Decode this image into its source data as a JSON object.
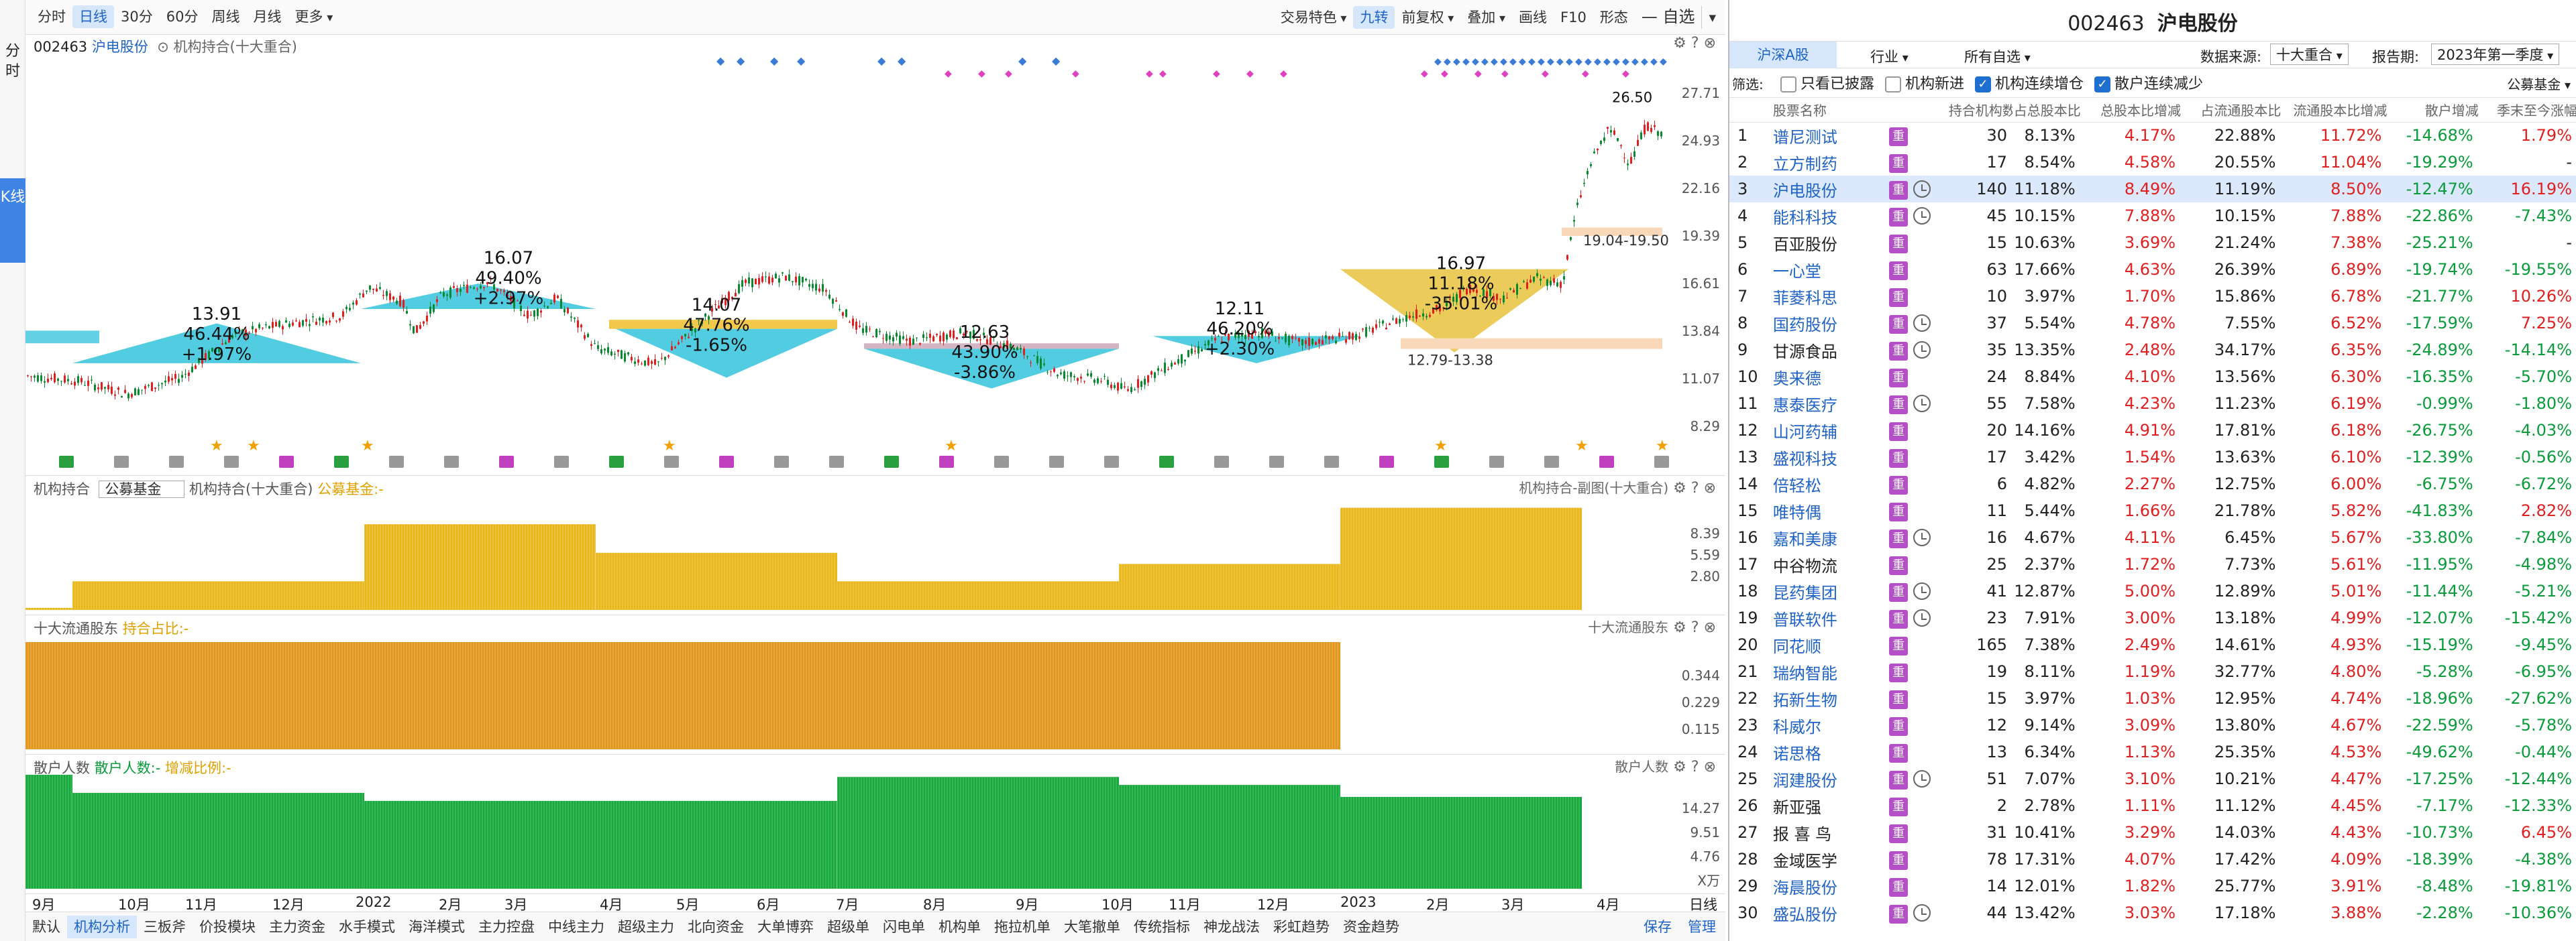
{
  "left_tabs": [
    {
      "label": "分时"
    },
    {
      "label": "K线"
    }
  ],
  "toolbar": {
    "periods": [
      "分时",
      "日线",
      "30分",
      "60分",
      "周线",
      "月线",
      "更多"
    ],
    "active": "日线",
    "right": [
      "交易特色",
      "九转",
      "前复权",
      "叠加",
      "画线",
      "F10",
      "形态"
    ],
    "zixuan": "自选"
  },
  "kline": {
    "code": "002463",
    "name": "沪电股份",
    "indicator": "机构持合(十大重合)",
    "yaxis": [
      "27.71",
      "24.93",
      "22.16",
      "19.39",
      "16.61",
      "13.84",
      "11.07",
      "8.29"
    ],
    "annotations": [
      {
        "price": "13.91",
        "pct": "46.44%",
        "chg": "+1.97%"
      },
      {
        "price": "16.07",
        "pct": "49.40%",
        "chg": "+2.97%"
      },
      {
        "price": "14.07",
        "pct": "47.76%",
        "chg": "-1.65%"
      },
      {
        "price": "12.63",
        "pct": "43.90%",
        "chg": "-3.86%"
      },
      {
        "price": "12.11",
        "pct": "46.20%",
        "chg": "+2.30%"
      },
      {
        "price": "16.97",
        "pct": "11.18%",
        "chg": "-35.01%"
      }
    ],
    "range_labels": [
      "19.04-19.50",
      "12.79-13.38"
    ],
    "peak": "26.50"
  },
  "panel1": {
    "title": "机构持合",
    "select": "公募基金",
    "sub": "机构持合(十大重合)",
    "legend": "公募基金:-",
    "right_title": "机构持合-副图(十大重合)",
    "yaxis": [
      "8.39",
      "5.59",
      "2.80"
    ]
  },
  "panel2": {
    "title": "十大流通股东",
    "legend": "持合占比:-",
    "right_title": "十大流通股东",
    "yaxis": [
      "0.344",
      "0.229",
      "0.115"
    ]
  },
  "panel3": {
    "title": "散户人数",
    "legend1": "散户人数:-",
    "legend2": "增减比例:-",
    "right_title": "散户人数",
    "yaxis": [
      "14.27",
      "9.51",
      "4.76"
    ],
    "unit": "X万"
  },
  "xaxis": [
    "9月",
    "10月",
    "11月",
    "12月",
    "2022",
    "2月",
    "3月",
    "4月",
    "5月",
    "6月",
    "7月",
    "8月",
    "9月",
    "10月",
    "11月",
    "12月",
    "2023",
    "2月",
    "3月",
    "4月"
  ],
  "xaxis_right": "日线",
  "bottom_tabs": [
    "默认",
    "机构分析",
    "三板斧",
    "价投模块",
    "主力资金",
    "水手模式",
    "海洋模式",
    "主力控盘",
    "中线主力",
    "超级主力",
    "北向资金",
    "大单博弈",
    "超级单",
    "闪电单",
    "机构单",
    "拖拉机单",
    "大笔撤单",
    "传统指标",
    "神龙战法",
    "彩虹趋势",
    "资金趋势"
  ],
  "bottom_active": "机构分析",
  "bottom_right": [
    "保存",
    "管理"
  ],
  "right": {
    "code": "002463",
    "name": "沪电股份",
    "tabs": [
      "沪深A股",
      "行业",
      "所有自选"
    ],
    "source_label": "数据来源:",
    "source": "十大重合",
    "period_label": "报告期:",
    "period": "2023年第一季度",
    "filter_label": "筛选:",
    "filters": [
      {
        "label": "只看已披露",
        "checked": false
      },
      {
        "label": "机构新进",
        "checked": false
      },
      {
        "label": "机构连续增仓",
        "checked": true
      },
      {
        "label": "散户连续减少",
        "checked": true
      }
    ],
    "fund": "公募基金",
    "columns": [
      "股票名称",
      "持合机构数",
      "占总股本比",
      "总股本比增减",
      "占流通股本比",
      "流通股本比增减",
      "散户增减",
      "季末至今涨幅"
    ],
    "rows": [
      [
        "1",
        "谱尼测试",
        false,
        "30",
        "8.13%",
        "4.17%",
        "22.88%",
        "11.72%",
        "-14.68%",
        "1.79%"
      ],
      [
        "2",
        "立方制药",
        false,
        "17",
        "8.54%",
        "4.58%",
        "20.55%",
        "11.04%",
        "-19.29%",
        "-"
      ],
      [
        "3",
        "沪电股份",
        true,
        "140",
        "11.18%",
        "8.49%",
        "11.19%",
        "8.50%",
        "-12.47%",
        "16.19%"
      ],
      [
        "4",
        "能科科技",
        true,
        "45",
        "10.15%",
        "7.88%",
        "10.15%",
        "7.88%",
        "-22.86%",
        "-7.43%"
      ],
      [
        "5",
        "百亚股份",
        false,
        "15",
        "10.63%",
        "3.69%",
        "21.24%",
        "7.38%",
        "-25.21%",
        "-"
      ],
      [
        "6",
        "一心堂",
        false,
        "63",
        "17.66%",
        "4.63%",
        "26.39%",
        "6.89%",
        "-19.74%",
        "-19.55%"
      ],
      [
        "7",
        "菲菱科思",
        false,
        "10",
        "3.97%",
        "1.70%",
        "15.86%",
        "6.78%",
        "-21.77%",
        "10.26%"
      ],
      [
        "8",
        "国药股份",
        true,
        "37",
        "5.54%",
        "4.78%",
        "7.55%",
        "6.52%",
        "-17.59%",
        "7.25%"
      ],
      [
        "9",
        "甘源食品",
        true,
        "35",
        "13.35%",
        "2.48%",
        "34.17%",
        "6.35%",
        "-24.89%",
        "-14.14%"
      ],
      [
        "10",
        "奥来德",
        false,
        "24",
        "8.84%",
        "4.10%",
        "13.56%",
        "6.30%",
        "-16.35%",
        "-5.70%"
      ],
      [
        "11",
        "惠泰医疗",
        true,
        "55",
        "7.58%",
        "4.23%",
        "11.23%",
        "6.19%",
        "-0.99%",
        "-1.80%"
      ],
      [
        "12",
        "山河药辅",
        false,
        "20",
        "14.16%",
        "4.91%",
        "17.81%",
        "6.18%",
        "-26.75%",
        "-4.03%"
      ],
      [
        "13",
        "盛视科技",
        false,
        "17",
        "3.42%",
        "1.54%",
        "13.63%",
        "6.10%",
        "-12.39%",
        "-0.56%"
      ],
      [
        "14",
        "倍轻松",
        false,
        "6",
        "4.82%",
        "2.27%",
        "12.75%",
        "6.00%",
        "-6.75%",
        "-6.72%"
      ],
      [
        "15",
        "唯特偶",
        false,
        "11",
        "5.44%",
        "1.66%",
        "21.78%",
        "5.82%",
        "-41.83%",
        "2.82%"
      ],
      [
        "16",
        "嘉和美康",
        true,
        "16",
        "4.67%",
        "4.11%",
        "6.45%",
        "5.67%",
        "-33.80%",
        "-7.84%"
      ],
      [
        "17",
        "中谷物流",
        false,
        "25",
        "2.37%",
        "1.72%",
        "7.73%",
        "5.61%",
        "-11.95%",
        "-4.98%"
      ],
      [
        "18",
        "昆药集团",
        true,
        "41",
        "12.87%",
        "5.00%",
        "12.89%",
        "5.01%",
        "-11.44%",
        "-5.21%"
      ],
      [
        "19",
        "普联软件",
        true,
        "23",
        "7.91%",
        "3.00%",
        "13.18%",
        "4.99%",
        "-12.07%",
        "-15.42%"
      ],
      [
        "20",
        "同花顺",
        false,
        "165",
        "7.38%",
        "2.49%",
        "14.61%",
        "4.93%",
        "-15.19%",
        "-9.45%"
      ],
      [
        "21",
        "瑞纳智能",
        false,
        "19",
        "8.11%",
        "1.19%",
        "32.77%",
        "4.80%",
        "-5.28%",
        "-6.95%"
      ],
      [
        "22",
        "拓新生物",
        false,
        "15",
        "3.97%",
        "1.03%",
        "12.95%",
        "4.74%",
        "-18.96%",
        "-27.62%"
      ],
      [
        "23",
        "科威尔",
        false,
        "12",
        "9.14%",
        "3.09%",
        "13.80%",
        "4.67%",
        "-22.59%",
        "-5.78%"
      ],
      [
        "24",
        "诺思格",
        false,
        "13",
        "6.34%",
        "1.13%",
        "25.35%",
        "4.53%",
        "-49.62%",
        "-0.44%"
      ],
      [
        "25",
        "润建股份",
        true,
        "51",
        "7.07%",
        "3.10%",
        "10.21%",
        "4.47%",
        "-17.25%",
        "-12.44%"
      ],
      [
        "26",
        "新亚强",
        false,
        "2",
        "2.78%",
        "1.11%",
        "11.12%",
        "4.45%",
        "-7.17%",
        "-12.33%"
      ],
      [
        "27",
        "报 喜 鸟",
        false,
        "31",
        "10.41%",
        "3.29%",
        "14.03%",
        "4.43%",
        "-10.73%",
        "6.45%"
      ],
      [
        "28",
        "金域医学",
        false,
        "78",
        "17.31%",
        "4.07%",
        "17.42%",
        "4.09%",
        "-18.39%",
        "-4.38%"
      ],
      [
        "29",
        "海晨股份",
        false,
        "14",
        "12.01%",
        "1.82%",
        "25.77%",
        "3.91%",
        "-8.48%",
        "-19.81%"
      ],
      [
        "30",
        "盛弘股份",
        true,
        "44",
        "13.42%",
        "3.03%",
        "17.18%",
        "3.88%",
        "-2.28%",
        "-10.36%"
      ]
    ],
    "black_names": [
      "百亚股份",
      "甘源食品",
      "中谷物流",
      "新亚强",
      "报 喜 鸟",
      "金域医学"
    ]
  }
}
